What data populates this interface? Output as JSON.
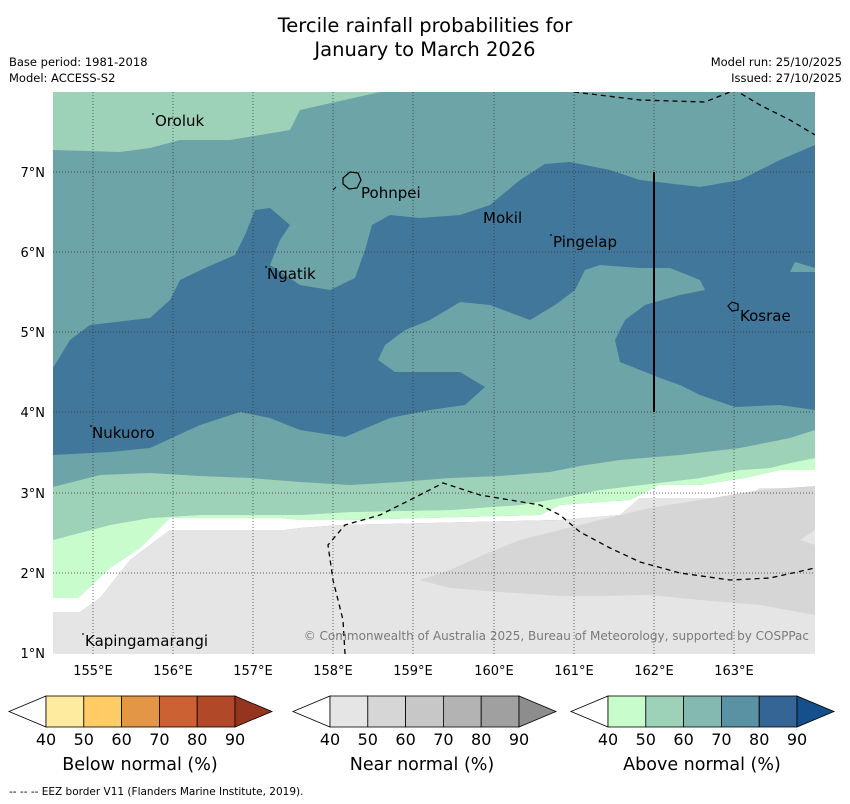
{
  "title": {
    "line1": "Tercile rainfall probabilities for",
    "line2": "January to March 2026"
  },
  "meta": {
    "base_period": "Base period: 1981-2018",
    "model": "Model: ACCESS-S2",
    "model_run": "Model run: 25/10/2025",
    "issued": "Issued: 27/10/2025"
  },
  "map": {
    "lat_ticks": [
      "7°N",
      "6°N",
      "5°N",
      "4°N",
      "3°N",
      "2°N",
      "1°N"
    ],
    "lon_ticks": [
      "155°E",
      "156°E",
      "157°E",
      "158°E",
      "159°E",
      "160°E",
      "161°E",
      "162°E",
      "163°E"
    ],
    "places": [
      "Oroluk",
      "Pohnpei",
      "Mokil",
      "Pingelap",
      "Ngatik",
      "Kosrae",
      "Nukuoro",
      "Kapingamarangi"
    ],
    "copyright": "© Commonwealth of Australia 2025, Bureau of Meteorology, supported by COSPPac"
  },
  "colors": {
    "above": [
      "#c9fccc",
      "#9dd2b9",
      "#84b9b1",
      "#5a92a3",
      "#356594",
      "#154f8c"
    ],
    "near": [
      "#e5e5e5",
      "#d6d6d6",
      "#c7c7c7",
      "#b3b3b3",
      "#a0a0a0",
      "#8d8d8d"
    ],
    "below": [
      "#ffeba0",
      "#ffcb64",
      "#e29646",
      "#cc6234",
      "#b14827",
      "#953520"
    ],
    "map_above_50": "#9dd2b9",
    "map_above_60": "#6ca4a8",
    "map_above_70": "#40779a",
    "map_near_40": "#e5e5e5",
    "map_near_50": "#d6d6d6"
  },
  "legends": [
    {
      "label": "Below normal (%)",
      "values": [
        "40",
        "50",
        "60",
        "70",
        "80",
        "90"
      ]
    },
    {
      "label": "Near normal (%)",
      "values": [
        "40",
        "50",
        "60",
        "70",
        "80",
        "90"
      ]
    },
    {
      "label": "Above normal (%)",
      "values": [
        "40",
        "50",
        "60",
        "70",
        "80",
        "90"
      ]
    }
  ],
  "footnote": "--  --  -- EEZ border V11 (Flanders Marine Institute, 2019)."
}
